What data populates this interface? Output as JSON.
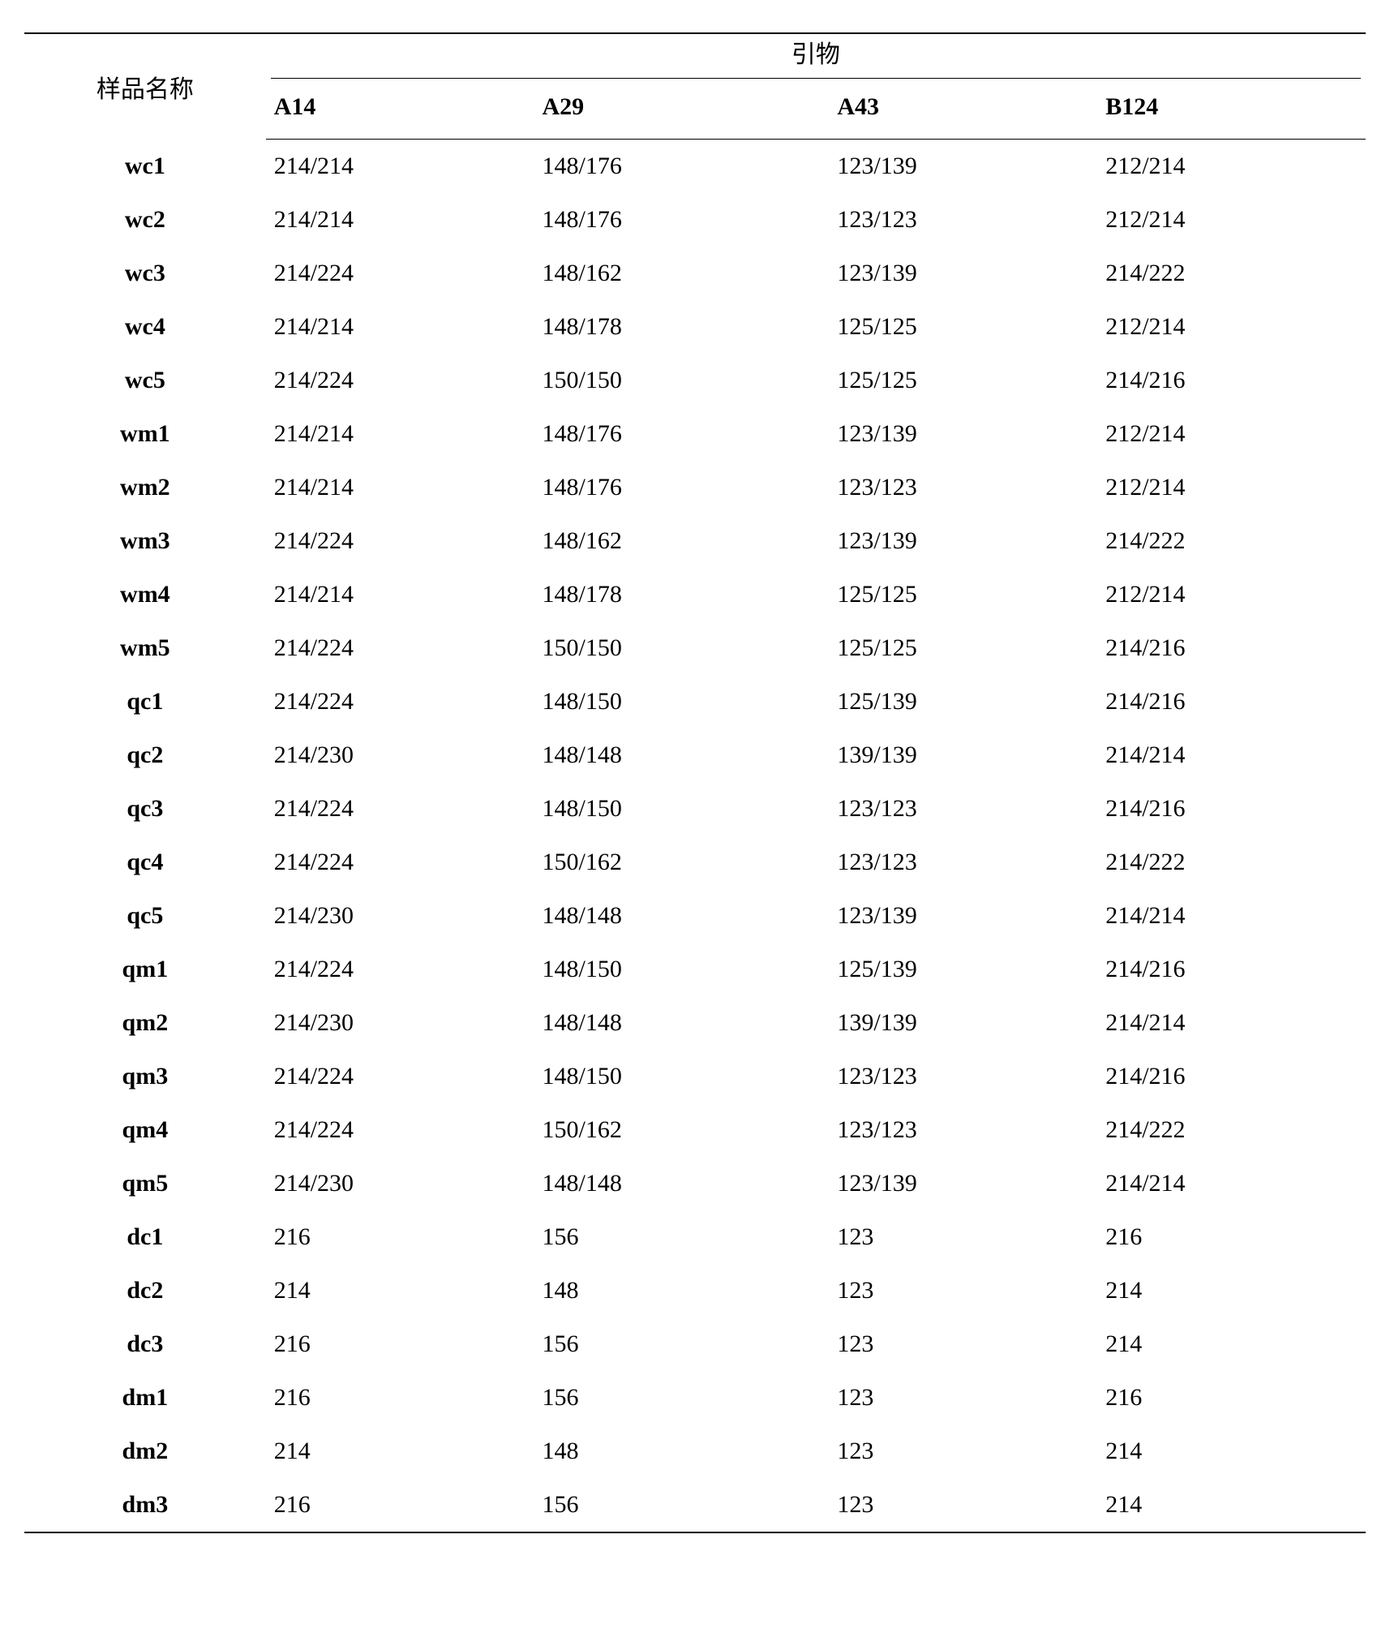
{
  "table": {
    "type": "table",
    "background_color": "#ffffff",
    "text_color": "#000000",
    "border_color": "#000000",
    "font_family": "Times New Roman / SimSun serif",
    "base_fontsize_pt": 22,
    "row_header_label": "样品名称",
    "span_header_label": "引物",
    "columns": [
      "A14",
      "A29",
      "A43",
      "B124"
    ],
    "column_widths_pct": [
      18,
      20,
      22,
      20,
      20
    ],
    "header_bold": true,
    "rowname_bold": true,
    "rows": [
      {
        "name": "wc1",
        "cells": [
          "214/214",
          "148/176",
          "123/139",
          "212/214"
        ]
      },
      {
        "name": "wc2",
        "cells": [
          "214/214",
          "148/176",
          "123/123",
          "212/214"
        ]
      },
      {
        "name": "wc3",
        "cells": [
          "214/224",
          "148/162",
          "123/139",
          "214/222"
        ]
      },
      {
        "name": "wc4",
        "cells": [
          "214/214",
          "148/178",
          "125/125",
          "212/214"
        ]
      },
      {
        "name": "wc5",
        "cells": [
          "214/224",
          "150/150",
          "125/125",
          "214/216"
        ]
      },
      {
        "name": "wm1",
        "cells": [
          "214/214",
          "148/176",
          "123/139",
          "212/214"
        ]
      },
      {
        "name": "wm2",
        "cells": [
          "214/214",
          "148/176",
          "123/123",
          "212/214"
        ]
      },
      {
        "name": "wm3",
        "cells": [
          "214/224",
          "148/162",
          "123/139",
          "214/222"
        ]
      },
      {
        "name": "wm4",
        "cells": [
          "214/214",
          "148/178",
          "125/125",
          "212/214"
        ]
      },
      {
        "name": "wm5",
        "cells": [
          "214/224",
          "150/150",
          "125/125",
          "214/216"
        ]
      },
      {
        "name": "qc1",
        "cells": [
          "214/224",
          "148/150",
          "125/139",
          "214/216"
        ]
      },
      {
        "name": "qc2",
        "cells": [
          "214/230",
          "148/148",
          "139/139",
          "214/214"
        ]
      },
      {
        "name": "qc3",
        "cells": [
          "214/224",
          "148/150",
          "123/123",
          "214/216"
        ]
      },
      {
        "name": "qc4",
        "cells": [
          "214/224",
          "150/162",
          "123/123",
          "214/222"
        ]
      },
      {
        "name": "qc5",
        "cells": [
          "214/230",
          "148/148",
          "123/139",
          "214/214"
        ]
      },
      {
        "name": "qm1",
        "cells": [
          "214/224",
          "148/150",
          "125/139",
          "214/216"
        ]
      },
      {
        "name": "qm2",
        "cells": [
          "214/230",
          "148/148",
          "139/139",
          "214/214"
        ]
      },
      {
        "name": "qm3",
        "cells": [
          "214/224",
          "148/150",
          "123/123",
          "214/216"
        ]
      },
      {
        "name": "qm4",
        "cells": [
          "214/224",
          "150/162",
          "123/123",
          "214/222"
        ]
      },
      {
        "name": "qm5",
        "cells": [
          "214/230",
          "148/148",
          "123/139",
          "214/214"
        ]
      },
      {
        "name": "dc1",
        "cells": [
          "216",
          "156",
          "123",
          "216"
        ]
      },
      {
        "name": "dc2",
        "cells": [
          "214",
          "148",
          "123",
          "214"
        ]
      },
      {
        "name": "dc3",
        "cells": [
          "216",
          "156",
          "123",
          "214"
        ]
      },
      {
        "name": "dm1",
        "cells": [
          "216",
          "156",
          "123",
          "216"
        ]
      },
      {
        "name": "dm2",
        "cells": [
          "214",
          "148",
          "123",
          "214"
        ]
      },
      {
        "name": "dm3",
        "cells": [
          "216",
          "156",
          "123",
          "214"
        ]
      }
    ]
  }
}
